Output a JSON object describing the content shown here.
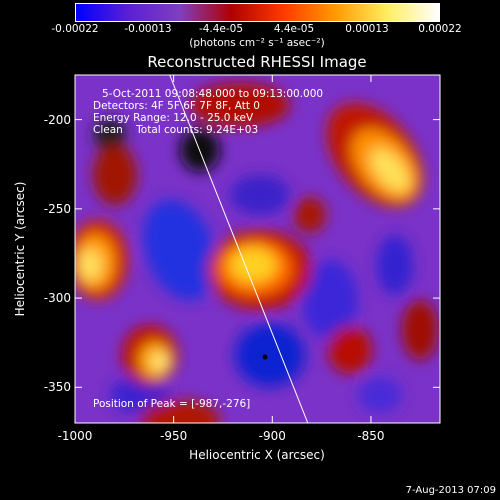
{
  "colorbar": {
    "ticks": [
      "-0.00022",
      "-0.00013",
      "-4.4e-05",
      "4.4e-05",
      "0.00013",
      "0.00022"
    ],
    "units": "(photons cm⁻² s⁻¹ asec⁻²)",
    "colors": [
      "#0000ff",
      "#5a1fd6",
      "#7f3fbf",
      "#b00000",
      "#ff3a00",
      "#ff9a00",
      "#ffee60",
      "#ffffff"
    ]
  },
  "annotations": {
    "time": "5-Oct-2011 09:08:48.000 to 09:13:00.000",
    "detectors": "Detectors: 4F 5F 6F 7F 8F, Att 0",
    "energy": "Energy Range: 12.0 - 25.0 keV",
    "clean": "Clean    Total counts: 9.24E+03",
    "peak": "Position of Peak = [-987,-276]"
  },
  "footer": "7-Aug-2013 07:09",
  "chart_data": {
    "type": "heatmap",
    "title": "Reconstructed RHESSI Image",
    "xlabel": "Heliocentric X (arcsec)",
    "ylabel": "Heliocentric Y (arcsec)",
    "xlim": [
      -1000,
      -815
    ],
    "ylim": [
      -370,
      -175
    ],
    "xticks": [
      -1000,
      -950,
      -900,
      -850
    ],
    "yticks": [
      -200,
      -250,
      -300,
      -350
    ],
    "colorbar_range": [
      -0.00022,
      0.00022
    ],
    "peak": [
      -987,
      -276
    ],
    "limb_line": [
      [
        -952,
        -175
      ],
      [
        -882,
        -370
      ]
    ]
  }
}
